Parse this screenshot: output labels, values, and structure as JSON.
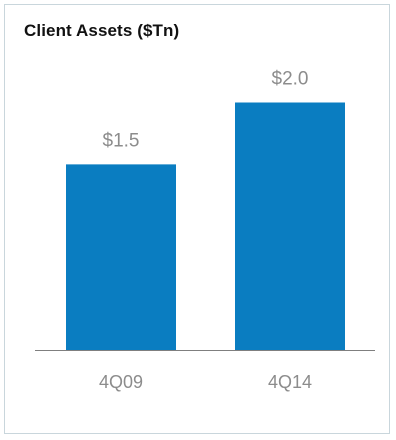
{
  "chart_data": {
    "type": "bar",
    "title": "Client Assets ($Tn)",
    "categories": [
      "4Q09",
      "4Q14"
    ],
    "values": [
      1.5,
      2.0
    ],
    "value_labels": [
      "$1.5",
      "$2.0"
    ],
    "xlabel": "",
    "ylabel": "",
    "ylim": [
      0,
      2.4
    ],
    "grid": false,
    "legend": "none",
    "colors": {
      "bar": "#0a7dc1",
      "value_label": "#8c8c8c",
      "tick_label": "#8c8c8c",
      "axis": "#7f7f7f",
      "border": "#c9d6dc"
    }
  }
}
